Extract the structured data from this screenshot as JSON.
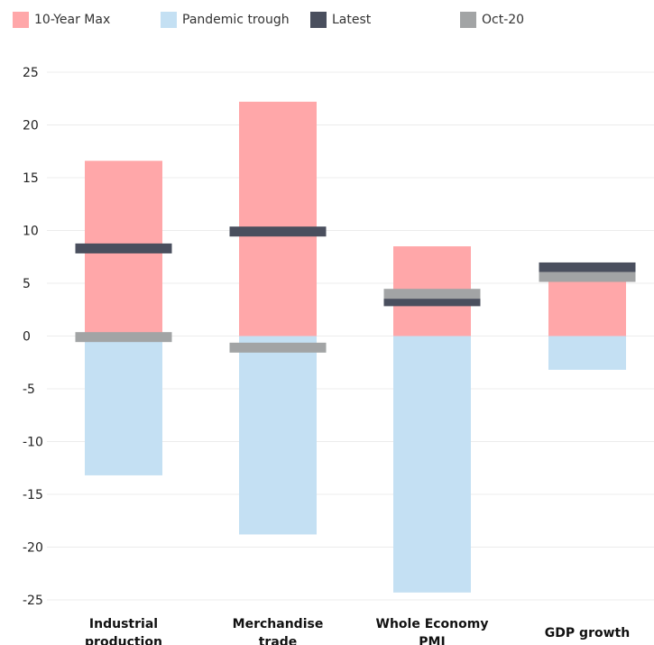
{
  "legend": [
    {
      "label": "10-Year Max",
      "color": "#ffa7a9"
    },
    {
      "label": "Pandemic trough",
      "color": "#c4e0f3"
    },
    {
      "label": "Latest",
      "color": "#4a4f5e"
    },
    {
      "label": "Oct-20",
      "color": "#a2a4a5"
    }
  ],
  "chart_data": {
    "type": "bar",
    "categories": [
      [
        "Industrial",
        "production"
      ],
      [
        "Merchandise",
        "trade"
      ],
      [
        "Whole Economy",
        "PMI"
      ],
      [
        "GDP growth"
      ]
    ],
    "series": [
      {
        "name": "10-Year Max",
        "values": [
          16.6,
          22.2,
          8.5,
          5.6
        ],
        "color": "#ffa7a9",
        "kind": "range-bar"
      },
      {
        "name": "Pandemic trough",
        "values": [
          -13.2,
          -18.8,
          -24.3,
          -3.2
        ],
        "color": "#c4e0f3",
        "kind": "range-bar"
      },
      {
        "name": "Latest",
        "values": [
          8.3,
          9.9,
          3.3,
          6.5
        ],
        "color": "#4a4f5e",
        "kind": "marker"
      },
      {
        "name": "Oct-20",
        "values": [
          -0.1,
          -1.1,
          4.0,
          5.6
        ],
        "color": "#a2a4a5",
        "kind": "marker"
      }
    ],
    "yticks": [
      "25",
      "20",
      "15",
      "10",
      "5",
      "0",
      "-5",
      "-10",
      "-15",
      "-20",
      "-25"
    ],
    "ylim": [
      -25,
      25
    ],
    "grid": true,
    "legend_position": "top"
  }
}
